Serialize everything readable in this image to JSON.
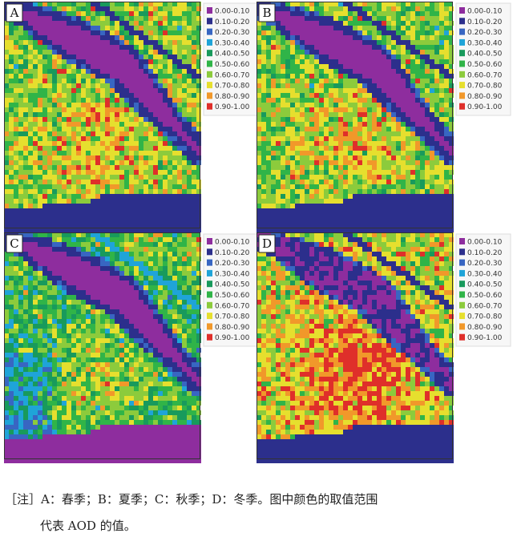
{
  "legend_colors": [
    "#8e2d9e",
    "#2c2f8c",
    "#3866c2",
    "#1fa4d8",
    "#189a5c",
    "#30b448",
    "#8ccb3c",
    "#e6df2e",
    "#f1982a",
    "#df2f2a"
  ],
  "panels": [
    {
      "label": "A",
      "legend": [
        "0.00-0.10",
        "0.10-0.20",
        "0.20-0.30",
        "0.30-0.40",
        "0.40-0.50",
        "0.50-0.60",
        "0.60-0.70",
        "0.70-0.80",
        "0.80-0.90",
        "0.90-1.00"
      ]
    },
    {
      "label": "B",
      "legend": [
        "0.00-0.10",
        "0.10-0.20",
        "0.20-0.30",
        "0.30-0.40",
        "0.40-0.50",
        "0.50-0.60",
        "0.60-0.70",
        "0.70-0.80",
        "0.80-0.90",
        "0.90-1.00"
      ]
    },
    {
      "label": "C",
      "legend": [
        "0.00-0.10",
        "0.10-0.20",
        "0.20-0.30",
        "0.30-0.40",
        "0.40-0.50",
        "0.50-0.60",
        "0.60-0.70",
        "0.70-0.80",
        "0.80-0.90",
        "0.90-1.00"
      ]
    },
    {
      "label": "D",
      "legend": [
        "0.00-0.10",
        "0.10-0.20",
        "0.20-0.30",
        "0.30-0.40",
        "0.40-0.50",
        "0.50-0.60",
        "0.60-0.70",
        "0.70-0.80",
        "0.80-0.90",
        "0.90-1.00"
      ]
    }
  ],
  "caption": [
    "［注］A：春季；B：夏季；C：秋季；D：冬季。图中颜色的取值范围",
    "代表 AOD 的值。"
  ]
}
